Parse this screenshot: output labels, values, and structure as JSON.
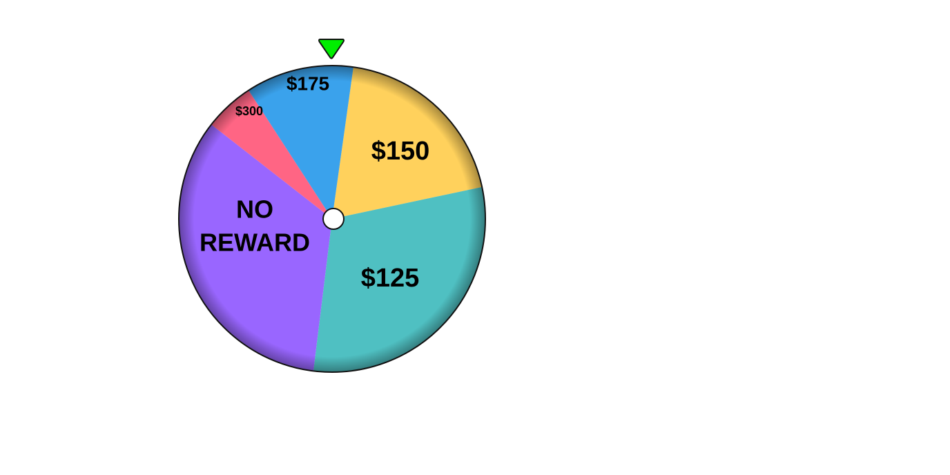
{
  "wheel": {
    "pointer_color": "#00ee00",
    "hub_color": "#ffffff",
    "segments": [
      {
        "label_lines": [
          "$150"
        ],
        "color": "#ffd15c"
      },
      {
        "label_lines": [
          "$125"
        ],
        "color": "#4fc0c2"
      },
      {
        "label_lines": [
          "NO",
          "REWARD"
        ],
        "color": "#9966ff"
      },
      {
        "label_lines": [
          "$300"
        ],
        "color": "#ff6584"
      },
      {
        "label_lines": [
          "$175"
        ],
        "color": "#3aa2ec"
      }
    ]
  }
}
